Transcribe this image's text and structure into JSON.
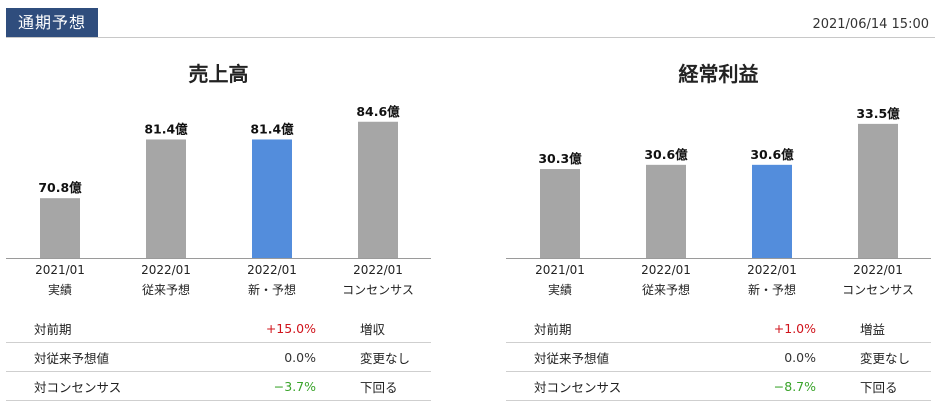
{
  "header": {
    "tab_label": "通期予想",
    "timestamp": "2021/06/14 15:00"
  },
  "colors": {
    "bar_default": "#a6a6a6",
    "bar_highlight": "#538ddc",
    "header_bg": "#2f4d7d",
    "positive": "#d0141c",
    "negative": "#39a32a"
  },
  "panels": [
    {
      "title": "売上高",
      "categories": [
        {
          "line1": "2021/01",
          "line2": "実績"
        },
        {
          "line1": "2022/01",
          "line2": "従来予想"
        },
        {
          "line1": "2022/01",
          "line2": "新・予想"
        },
        {
          "line1": "2022/01",
          "line2": "コンセンサス"
        }
      ],
      "rows": [
        {
          "label": "対前期",
          "value": "+15.0%",
          "sign": "pos",
          "text": "増収"
        },
        {
          "label": "対従来予想値",
          "value": "0.0%",
          "sign": "neu",
          "text": "変更なし"
        },
        {
          "label": "対コンセンサス",
          "value": "−3.7%",
          "sign": "neg",
          "text": "下回る"
        }
      ]
    },
    {
      "title": "経常利益",
      "categories": [
        {
          "line1": "2021/01",
          "line2": "実績"
        },
        {
          "line1": "2022/01",
          "line2": "従来予想"
        },
        {
          "line1": "2022/01",
          "line2": "新・予想"
        },
        {
          "line1": "2022/01",
          "line2": "コンセンサス"
        }
      ],
      "rows": [
        {
          "label": "対前期",
          "value": "+1.0%",
          "sign": "pos",
          "text": "増益"
        },
        {
          "label": "対従来予想値",
          "value": "0.0%",
          "sign": "neu",
          "text": "変更なし"
        },
        {
          "label": "対コンセンサス",
          "value": "−8.7%",
          "sign": "neg",
          "text": "下回る"
        }
      ]
    }
  ],
  "chart_data": [
    {
      "type": "bar",
      "title": "売上高",
      "categories": [
        "2021/01 実績",
        "2022/01 従来予想",
        "2022/01 新・予想",
        "2022/01 コンセンサス"
      ],
      "values": [
        70.8,
        81.4,
        81.4,
        84.6
      ],
      "labels": [
        "70.8億",
        "81.4億",
        "81.4億",
        "84.6億"
      ],
      "highlight_index": 2,
      "ylim": [
        60,
        86
      ]
    },
    {
      "type": "bar",
      "title": "経常利益",
      "categories": [
        "2021/01 実績",
        "2022/01 従来予想",
        "2022/01 新・予想",
        "2022/01 コンセンサス"
      ],
      "values": [
        30.3,
        30.6,
        30.6,
        33.5
      ],
      "labels": [
        "30.3億",
        "30.6億",
        "30.6億",
        "33.5億"
      ],
      "highlight_index": 2,
      "ylim": [
        24,
        34.2
      ]
    }
  ]
}
